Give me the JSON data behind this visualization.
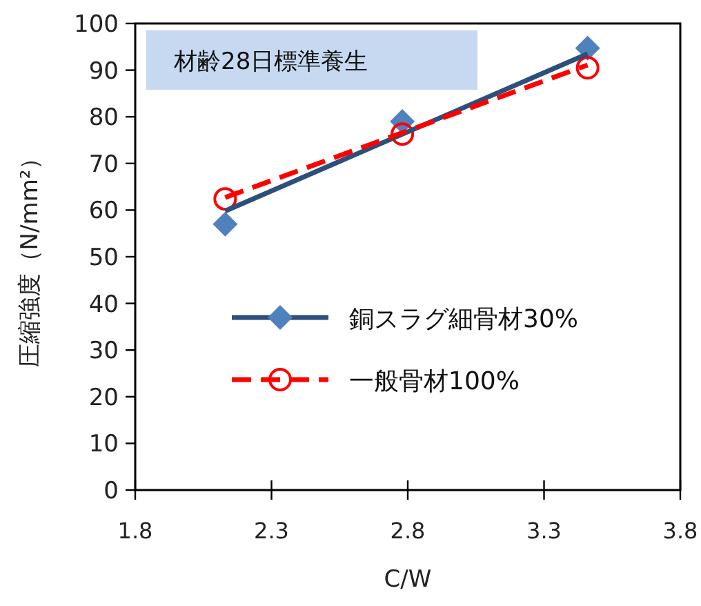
{
  "chart_data": {
    "type": "scatter",
    "xlabel": "C/W",
    "ylabel": "圧縮強度（N/mm²）",
    "annotations": [
      "材齢28日標準養生"
    ],
    "xlim": [
      1.8,
      3.8
    ],
    "xticks": [
      1.8,
      2.3,
      2.8,
      3.3,
      3.8
    ],
    "ylim": [
      0,
      100
    ],
    "yticks": [
      0,
      10,
      20,
      30,
      40,
      50,
      60,
      70,
      80,
      90,
      100
    ],
    "grid": false,
    "legend": "bottom right",
    "series": [
      {
        "name": "銅スラグ細骨材30%",
        "type": "scatter",
        "marker": "diamond",
        "color": "#4f81bd",
        "x": [
          2.13,
          2.78,
          3.46
        ],
        "values": [
          57,
          79,
          94.7
        ]
      },
      {
        "type": "line",
        "marker": "none",
        "line_style": "solid",
        "color": "#2c4f7c",
        "x": [
          2.13,
          3.46
        ],
        "values": [
          59.8,
          93.5
        ]
      },
      {
        "name": "一般骨材100%",
        "type": "scatter",
        "marker": "circle",
        "color": "#ff0000",
        "x": [
          2.13,
          2.78,
          3.46
        ],
        "values": [
          62.4,
          76.3,
          90.5
        ]
      },
      {
        "type": "line",
        "marker": "none",
        "line_style": "dashed",
        "color": "#ff0000",
        "x": [
          2.13,
          3.46
        ],
        "values": [
          62.7,
          91.1
        ]
      }
    ]
  }
}
